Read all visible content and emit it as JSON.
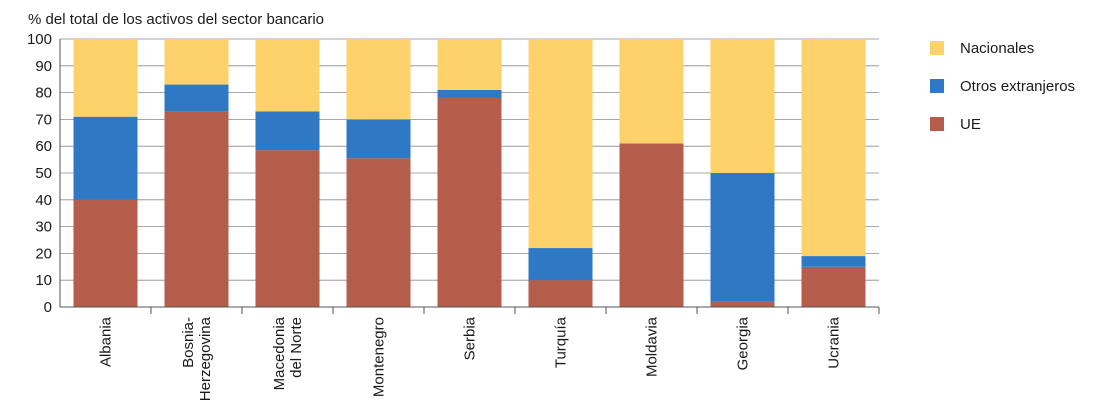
{
  "chart_data": {
    "type": "bar",
    "stacked": true,
    "ylabel": "% del total de los activos del sector bancario",
    "ylim": [
      0,
      100
    ],
    "yticks": [
      0,
      10,
      20,
      30,
      40,
      50,
      60,
      70,
      80,
      90,
      100
    ],
    "grid": true,
    "legend_position": "right",
    "categories": [
      [
        "Albania"
      ],
      [
        "Bosnia-",
        "Herzegovina"
      ],
      [
        "Macedonia",
        "del Norte"
      ],
      [
        "Montenegro"
      ],
      [
        "Serbia"
      ],
      [
        "Turquía"
      ],
      [
        "Moldavia"
      ],
      [
        "Georgia"
      ],
      [
        "Ucrania"
      ]
    ],
    "series": [
      {
        "name": "UE",
        "color": "#b35d4a",
        "values": [
          40,
          73,
          58.5,
          55.5,
          78,
          10,
          61,
          2,
          15
        ]
      },
      {
        "name": "Otros extranjeros",
        "color": "#2f78c4",
        "values": [
          31,
          10,
          14.5,
          14.5,
          3,
          12,
          0,
          48,
          4
        ]
      },
      {
        "name": "Nacionales",
        "color": "#fdd26b",
        "values": [
          29,
          17,
          27,
          30,
          19,
          78,
          39,
          50,
          81
        ]
      }
    ],
    "legend_order": [
      "Nacionales",
      "Otros extranjeros",
      "UE"
    ]
  }
}
